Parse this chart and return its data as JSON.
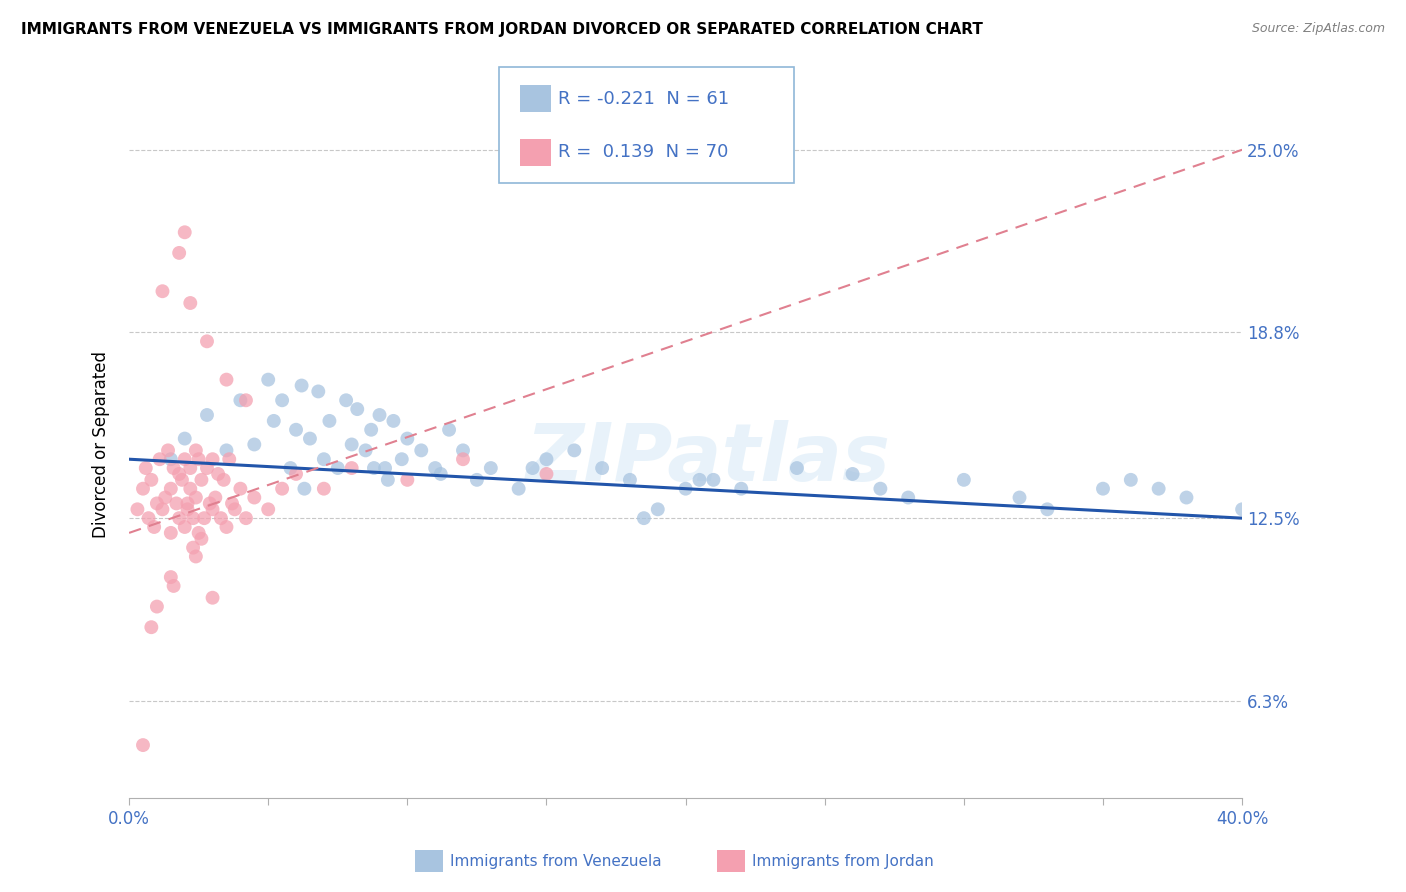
{
  "title": "IMMIGRANTS FROM VENEZUELA VS IMMIGRANTS FROM JORDAN DIVORCED OR SEPARATED CORRELATION CHART",
  "source": "Source: ZipAtlas.com",
  "ylabel": "Divorced or Separated",
  "xlim": [
    0.0,
    40.0
  ],
  "ylim": [
    3.0,
    27.0
  ],
  "ytick_vals": [
    6.3,
    12.5,
    18.8,
    25.0
  ],
  "ytick_labels": [
    "6.3%",
    "12.5%",
    "18.8%",
    "25.0%"
  ],
  "xtick_vals": [
    0.0,
    5.0,
    10.0,
    15.0,
    20.0,
    25.0,
    30.0,
    35.0,
    40.0
  ],
  "xtick_labels": [
    "0.0%",
    "",
    "",
    "",
    "",
    "",
    "",
    "",
    "40.0%"
  ],
  "venezuela_color": "#a8c4e0",
  "jordan_color": "#f4a0b0",
  "venezuela_line_color": "#2255aa",
  "jordan_line_color": "#e08090",
  "legend_R1": "-0.221",
  "legend_N1": "61",
  "legend_R2": "0.139",
  "legend_N2": "70",
  "venezuela_x": [
    1.5,
    2.0,
    2.8,
    3.5,
    4.0,
    4.5,
    5.0,
    5.2,
    5.5,
    5.8,
    6.0,
    6.2,
    6.5,
    6.8,
    7.0,
    7.2,
    7.5,
    7.8,
    8.0,
    8.2,
    8.5,
    8.7,
    9.0,
    9.2,
    9.5,
    9.8,
    10.0,
    10.5,
    11.0,
    11.5,
    12.0,
    12.5,
    13.0,
    14.0,
    15.0,
    16.0,
    17.0,
    18.0,
    19.0,
    20.0,
    21.0,
    22.0,
    24.0,
    26.0,
    28.0,
    30.0,
    32.0,
    33.0,
    35.0,
    36.0,
    37.0,
    38.0,
    40.0,
    20.5,
    27.0,
    18.5,
    14.5,
    9.3,
    6.3,
    8.8,
    11.2
  ],
  "venezuela_y": [
    14.5,
    15.2,
    16.0,
    14.8,
    16.5,
    15.0,
    17.2,
    15.8,
    16.5,
    14.2,
    15.5,
    17.0,
    15.2,
    16.8,
    14.5,
    15.8,
    14.2,
    16.5,
    15.0,
    16.2,
    14.8,
    15.5,
    16.0,
    14.2,
    15.8,
    14.5,
    15.2,
    14.8,
    14.2,
    15.5,
    14.8,
    13.8,
    14.2,
    13.5,
    14.5,
    14.8,
    14.2,
    13.8,
    12.8,
    13.5,
    13.8,
    13.5,
    14.2,
    14.0,
    13.2,
    13.8,
    13.2,
    12.8,
    13.5,
    13.8,
    13.5,
    13.2,
    12.8,
    13.8,
    13.5,
    12.5,
    14.2,
    13.8,
    13.5,
    14.2,
    14.0
  ],
  "jordan_x": [
    0.3,
    0.5,
    0.6,
    0.7,
    0.8,
    0.9,
    1.0,
    1.1,
    1.2,
    1.3,
    1.4,
    1.5,
    1.5,
    1.6,
    1.7,
    1.8,
    1.8,
    1.9,
    2.0,
    2.0,
    2.1,
    2.1,
    2.2,
    2.2,
    2.3,
    2.4,
    2.4,
    2.5,
    2.5,
    2.6,
    2.7,
    2.8,
    2.9,
    3.0,
    3.0,
    3.1,
    3.2,
    3.3,
    3.4,
    3.5,
    3.6,
    3.7,
    3.8,
    4.0,
    4.2,
    4.5,
    5.0,
    5.5,
    6.0,
    7.0,
    8.0,
    10.0,
    12.0,
    15.0,
    1.2,
    1.8,
    2.2,
    2.8,
    3.5,
    4.2,
    2.0,
    2.6,
    1.5,
    1.0,
    2.4,
    3.0,
    0.8,
    1.6,
    2.3,
    0.5
  ],
  "jordan_y": [
    12.8,
    13.5,
    14.2,
    12.5,
    13.8,
    12.2,
    13.0,
    14.5,
    12.8,
    13.2,
    14.8,
    13.5,
    12.0,
    14.2,
    13.0,
    12.5,
    14.0,
    13.8,
    12.2,
    14.5,
    13.0,
    12.8,
    14.2,
    13.5,
    12.5,
    14.8,
    13.2,
    12.0,
    14.5,
    13.8,
    12.5,
    14.2,
    13.0,
    12.8,
    14.5,
    13.2,
    14.0,
    12.5,
    13.8,
    12.2,
    14.5,
    13.0,
    12.8,
    13.5,
    12.5,
    13.2,
    12.8,
    13.5,
    14.0,
    13.5,
    14.2,
    13.8,
    14.5,
    14.0,
    20.2,
    21.5,
    19.8,
    18.5,
    17.2,
    16.5,
    22.2,
    11.8,
    10.5,
    9.5,
    11.2,
    9.8,
    8.8,
    10.2,
    11.5,
    4.8
  ]
}
